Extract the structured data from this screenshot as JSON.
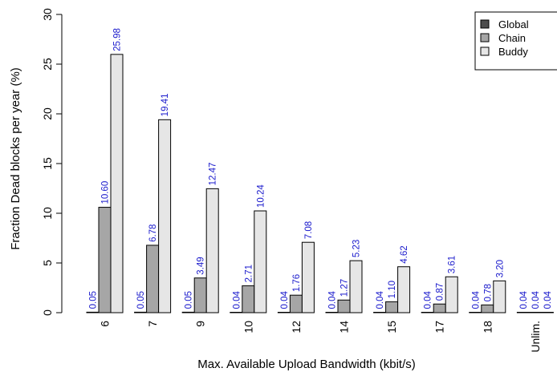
{
  "chart_data": {
    "type": "bar",
    "title": "",
    "xlabel": "Max. Available Upload Bandwidth (kbit/s)",
    "ylabel": "Fraction Dead blocks per year (%)",
    "ylim": [
      0,
      30
    ],
    "yticks": [
      "0",
      "5",
      "10",
      "15",
      "20",
      "25",
      "30"
    ],
    "categories": [
      "6",
      "7",
      "9",
      "10",
      "12",
      "14",
      "15",
      "17",
      "18",
      "Unlim."
    ],
    "legend_position": "top-right",
    "series": [
      {
        "name": "Global",
        "color": "#4d4d4d",
        "values": [
          0.05,
          0.05,
          0.05,
          0.04,
          0.04,
          0.04,
          0.04,
          0.04,
          0.04,
          0.04
        ],
        "labels": [
          "0.05",
          "0.05",
          "0.05",
          "0.04",
          "0.04",
          "0.04",
          "0.04",
          "0.04",
          "0.04",
          "0.04"
        ]
      },
      {
        "name": "Chain",
        "color": "#a6a6a6",
        "values": [
          10.6,
          6.78,
          3.49,
          2.71,
          1.76,
          1.27,
          1.1,
          0.87,
          0.78,
          0.04
        ],
        "labels": [
          "10.60",
          "6.78",
          "3.49",
          "2.71",
          "1.76",
          "1.27",
          "1.10",
          "0.87",
          "0.78",
          "0.04"
        ]
      },
      {
        "name": "Buddy",
        "color": "#e6e6e6",
        "values": [
          25.98,
          19.41,
          12.47,
          10.24,
          7.08,
          5.23,
          4.62,
          3.61,
          3.2,
          0.04
        ],
        "labels": [
          "25.98",
          "19.41",
          "12.47",
          "10.24",
          "7.08",
          "5.23",
          "4.62",
          "3.61",
          "3.20",
          "0.04"
        ]
      }
    ],
    "value_label_color": "#1a1acc",
    "grid": false
  }
}
